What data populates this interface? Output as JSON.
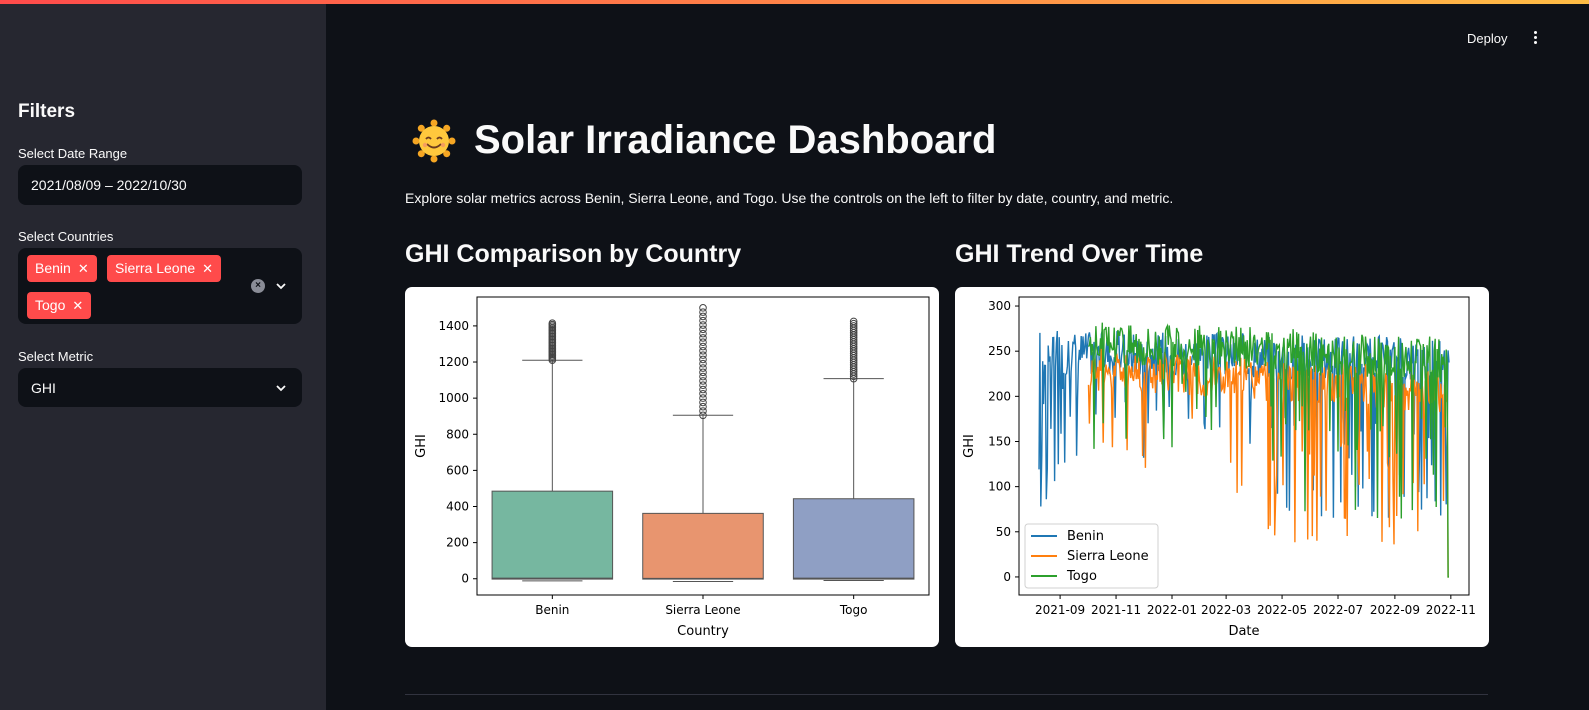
{
  "header": {
    "deploy_label": "Deploy"
  },
  "sidebar": {
    "title": "Filters",
    "date_label": "Select Date Range",
    "date_value": "2021/08/09 – 2022/10/30",
    "countries_label": "Select Countries",
    "countries": [
      "Benin",
      "Sierra Leone",
      "Togo"
    ],
    "metric_label": "Select Metric",
    "metric_value": "GHI"
  },
  "main": {
    "title": "Solar Irradiance Dashboard",
    "description": "Explore solar metrics across Benin, Sierra Leone, and Togo. Use the controls on the left to filter by date, country, and metric.",
    "box_title": "GHI Comparison by Country",
    "trend_title": "GHI Trend Over Time"
  },
  "colors": {
    "accent": "#ff4b4b",
    "benin": "#1f77b4",
    "sierra_leone": "#ff7f0e",
    "togo": "#2ca02c"
  },
  "chart_data": [
    {
      "type": "box",
      "xlabel": "Country",
      "ylabel": "GHI",
      "categories": [
        "Benin",
        "Sierra Leone",
        "Togo"
      ],
      "yticks": [
        0,
        200,
        400,
        600,
        800,
        1000,
        1200,
        1400
      ],
      "ylim": [
        -90,
        1560
      ],
      "colors": [
        "#76b7a0",
        "#e8956f",
        "#8f9fc4"
      ],
      "boxes": [
        {
          "name": "Benin",
          "min": -12,
          "q1": -2,
          "median": 2,
          "q3": 485,
          "whisker_high": 1210,
          "outlier_max": 1415
        },
        {
          "name": "Sierra Leone",
          "min": -15,
          "q1": -2,
          "median": 1,
          "q3": 362,
          "whisker_high": 905,
          "outlier_max": 1500
        },
        {
          "name": "Togo",
          "min": -10,
          "q1": -2,
          "median": 2,
          "q3": 443,
          "whisker_high": 1108,
          "outlier_max": 1425
        }
      ]
    },
    {
      "type": "line",
      "xlabel": "Date",
      "ylabel": "GHI",
      "xticks": [
        "2021-09",
        "2021-11",
        "2022-01",
        "2022-03",
        "2022-05",
        "2022-07",
        "2022-09",
        "2022-11"
      ],
      "yticks": [
        0,
        50,
        100,
        150,
        200,
        250,
        300
      ],
      "ylim": [
        -20,
        310
      ],
      "legend_position": "lower left",
      "series": [
        {
          "name": "Benin",
          "color": "#1f77b4"
        },
        {
          "name": "Sierra Leone",
          "color": "#ff7f0e"
        },
        {
          "name": "Togo",
          "color": "#2ca02c"
        }
      ]
    }
  ]
}
